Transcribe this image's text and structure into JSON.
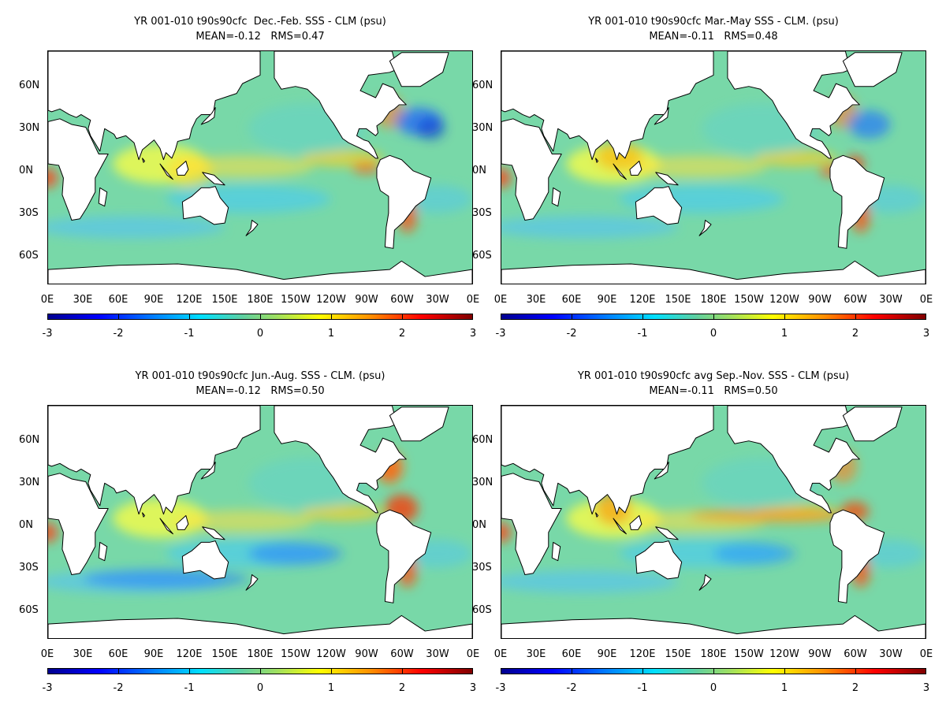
{
  "panels": [
    {
      "title": "YR 001-010 t90s90cfc  Dec.-Feb. SSS - CLM (psu)",
      "stats": "MEAN=-0.12   RMS=0.47",
      "mean": -0.12,
      "rms": 0.47
    },
    {
      "title": "YR 001-010 t90s90cfc Mar.-May SSS - CLM. (psu)",
      "stats": "MEAN=-0.11   RMS=0.48",
      "mean": -0.11,
      "rms": 0.48
    },
    {
      "title": "YR 001-010 t90s90cfc Jun.-Aug. SSS - CLM. (psu)",
      "stats": "MEAN=-0.12   RMS=0.50",
      "mean": -0.12,
      "rms": 0.5
    },
    {
      "title": "YR 001-010 t90s90cfc avg Sep.-Nov. SSS - CLM (psu)",
      "stats": "MEAN=-0.11   RMS=0.50",
      "mean": -0.11,
      "rms": 0.5
    }
  ],
  "lat_labels": [
    "60N",
    "30N",
    "0N",
    "30S",
    "60S"
  ],
  "lon_labels": [
    "0E",
    "30E",
    "60E",
    "90E",
    "120E",
    "150E",
    "180E",
    "150W",
    "120W",
    "90W",
    "60W",
    "30W",
    "0E"
  ],
  "colorbar": {
    "labels": [
      "-3",
      "-2",
      "-1",
      "0",
      "1",
      "2",
      "3"
    ],
    "min": -3,
    "max": 3,
    "colors": [
      "#00008f",
      "#0000ff",
      "#0080ff",
      "#00e0ff",
      "#60d0a0",
      "#a0e060",
      "#ffff00",
      "#ff9000",
      "#ff0000",
      "#800000"
    ]
  },
  "ocean_color": "#78d8a8",
  "land_color": "#ffffff"
}
